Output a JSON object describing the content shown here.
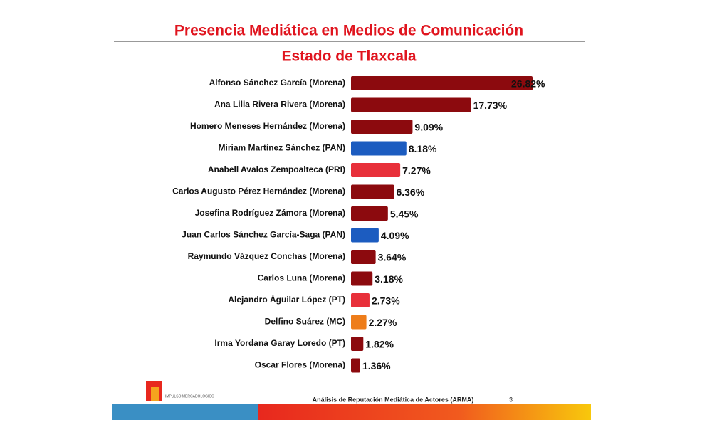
{
  "chart_data": {
    "type": "bar",
    "orientation": "horizontal",
    "title": "Presencia Mediática en Medios de Comunicación",
    "subtitle": "Estado de Tlaxcala",
    "categories": [
      "Alfonso Sánchez García (Morena)",
      "Ana Lilia Rivera Rivera (Morena)",
      "Homero Meneses Hernández (Morena)",
      "Miriam Martínez Sánchez (PAN)",
      "Anabell Avalos Zempoalteca (PRI)",
      "Carlos Augusto Pérez Hernández (Morena)",
      "Josefina Rodríguez Zámora (Morena)",
      "Juan Carlos Sánchez García-Saga (PAN)",
      "Raymundo Vázquez Conchas (Morena)",
      "Carlos Luna (Morena)",
      "Alejandro Águilar López (PT)",
      "Delfino Suárez (MC)",
      "Irma Yordana Garay Loredo (PT)",
      "Oscar Flores (Morena)"
    ],
    "values": [
      26.82,
      17.73,
      9.09,
      8.18,
      7.27,
      6.36,
      5.45,
      4.09,
      3.64,
      3.18,
      2.73,
      2.27,
      1.82,
      1.36
    ],
    "value_labels": [
      "26.82%",
      "17.73%",
      "9.09%",
      "8.18%",
      "7.27%",
      "6.36%",
      "5.45%",
      "4.09%",
      "3.64%",
      "3.18%",
      "2.73%",
      "2.27%",
      "1.82%",
      "1.36%"
    ],
    "colors": [
      "#8c0a0e",
      "#8c0a0e",
      "#8c0a0e",
      "#1c5cc0",
      "#e8303a",
      "#8c0a0e",
      "#8c0a0e",
      "#1c5cc0",
      "#8c0a0e",
      "#8c0a0e",
      "#e8303a",
      "#ee7d1a",
      "#8c0a0e",
      "#8c0a0e"
    ]
  },
  "footer": {
    "text": "Análisis de Reputación Mediática de Actores (ARMA)",
    "page": "3",
    "logo": "IMPULSO MERCADOLÓGICO"
  }
}
